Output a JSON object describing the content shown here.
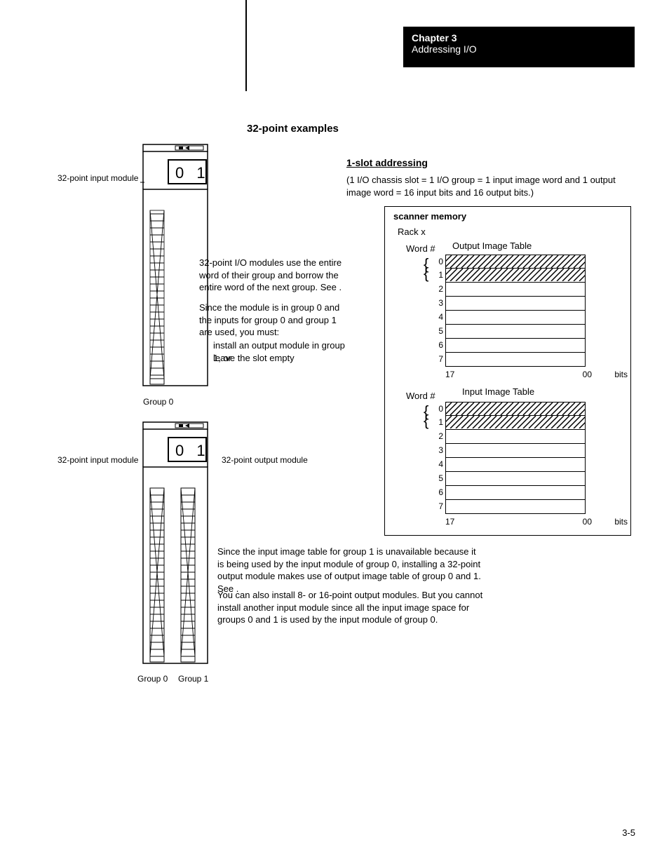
{
  "chapter": {
    "num": "Chapter  3",
    "title": "Addressing I/O"
  },
  "section_title": "32-point  examples",
  "subhead": "1-slot addressing",
  "slot_desc": "(1 I/O chassis slot = 1 I/O group = 1 input image word and 1 output image word = 16 input bits and 16 output bits.)",
  "label_input_module_1": "32-point input module",
  "label_input_module_2": "32-point input module",
  "label_output_module": "32-point output module",
  "chassis_top_text": "0 1",
  "group0_a": "Group 0",
  "group0_b": "Group 0",
  "group1_b": "Group 1",
  "para1": "32-point I/O modules use the entire word of their group and borrow the entire word of the next group.  See    .",
  "para2": "Since the module is in group 0 and the inputs for group 0 and group 1 are used, you must:",
  "bullet1": "install an output module in group 1, or",
  "bullet2": "leave the slot empty",
  "para3": "Since the input image table for group 1 is unavailable because it is being used by the input module of group 0, installing a 32-point output module makes use of output image table of group 0 and 1.  See    .",
  "para4": "You can also install 8- or 16-point output modules.  But you cannot install another input module since all the input image space for groups 0 and 1 is used by the input module of group 0.",
  "scanner": {
    "title": "scanner memory",
    "rack": "Rack x",
    "word": "Word #",
    "out_title": "Output Image Table",
    "in_title": "Input Image Table",
    "rows": [
      "0",
      "1",
      "2",
      "3",
      "4",
      "5",
      "6",
      "7"
    ],
    "bit_hi": "17",
    "bit_lo": "00",
    "bits": "bits"
  },
  "page_num": "3-5",
  "colors": {
    "black": "#000000",
    "white": "#ffffff"
  }
}
